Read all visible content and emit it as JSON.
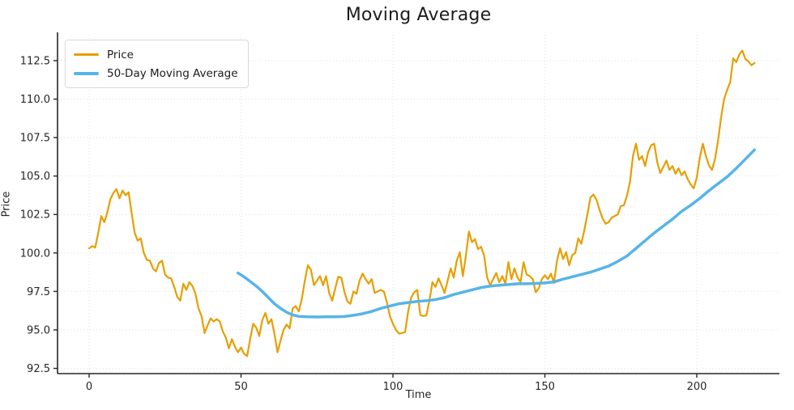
{
  "title": "Moving Average",
  "legend": {
    "items": [
      {
        "label": "Price",
        "color": "#E69F00",
        "thickness": 2.5
      },
      {
        "label": "50-Day Moving Average",
        "color": "#56B4E9",
        "thickness": 4
      }
    ]
  },
  "chart_data": {
    "type": "line",
    "title": "Moving Average",
    "xlabel": "Time",
    "ylabel": "Price",
    "grid": true,
    "legend_position": "upper left",
    "xlim": [
      -10.4,
      227.2
    ],
    "ylim": [
      92.16,
      114.18
    ],
    "x_ticks": [
      0,
      50,
      100,
      150,
      200
    ],
    "x_tick_labels": [
      "0",
      "50",
      "100",
      "150",
      "200"
    ],
    "y_ticks": [
      92.5,
      95.0,
      97.5,
      100.0,
      102.5,
      105.0,
      107.5,
      110.0,
      112.5
    ],
    "y_tick_labels": [
      "92.5",
      "95.0",
      "97.5",
      "100.0",
      "102.5",
      "105.0",
      "107.5",
      "110.0",
      "112.5"
    ],
    "series": [
      {
        "name": "Price",
        "color": "#E69F00",
        "line_width": 2.2,
        "x_start": 0,
        "x_step": 1,
        "values": [
          100.3,
          100.45,
          100.35,
          101.3,
          102.4,
          102.0,
          102.65,
          103.5,
          103.9,
          104.15,
          103.55,
          104.05,
          103.75,
          103.95,
          102.6,
          101.3,
          100.8,
          100.95,
          100.0,
          99.55,
          99.5,
          99.0,
          98.8,
          99.35,
          99.5,
          98.6,
          98.4,
          98.35,
          97.8,
          97.15,
          96.9,
          98.0,
          97.6,
          98.1,
          97.85,
          97.35,
          96.4,
          95.9,
          94.8,
          95.3,
          95.75,
          95.55,
          95.7,
          95.55,
          94.9,
          94.5,
          93.8,
          94.4,
          93.9,
          93.55,
          93.85,
          93.45,
          93.3,
          94.4,
          95.4,
          95.15,
          94.6,
          95.65,
          96.1,
          95.4,
          95.7,
          94.75,
          93.55,
          94.3,
          95.0,
          95.35,
          95.1,
          96.4,
          96.55,
          96.2,
          97.0,
          98.2,
          99.2,
          98.9,
          97.9,
          98.2,
          98.5,
          97.9,
          98.5,
          97.4,
          96.9,
          97.7,
          98.45,
          98.4,
          97.5,
          96.85,
          96.7,
          97.5,
          97.35,
          98.2,
          98.66,
          98.3,
          98.0,
          98.3,
          97.4,
          97.5,
          97.6,
          97.5,
          96.8,
          95.9,
          95.4,
          95.0,
          94.76,
          94.8,
          94.85,
          96.2,
          97.1,
          97.45,
          97.6,
          95.97,
          95.9,
          95.95,
          96.9,
          98.1,
          97.8,
          98.35,
          97.9,
          97.4,
          98.2,
          99.0,
          98.4,
          99.5,
          100.05,
          98.5,
          99.8,
          101.4,
          100.7,
          100.9,
          100.25,
          100.4,
          99.85,
          98.4,
          97.9,
          98.3,
          98.7,
          98.1,
          98.5,
          98.0,
          99.4,
          98.3,
          99.0,
          98.4,
          98.1,
          99.4,
          98.6,
          98.5,
          98.3,
          97.45,
          97.7,
          98.3,
          98.55,
          98.3,
          98.66,
          98.05,
          99.5,
          100.3,
          99.6,
          100.05,
          99.2,
          99.85,
          100.0,
          100.95,
          100.6,
          101.5,
          102.5,
          103.6,
          103.8,
          103.45,
          102.8,
          102.25,
          101.9,
          102.0,
          102.3,
          102.4,
          102.5,
          103.05,
          103.1,
          103.7,
          104.6,
          106.3,
          107.1,
          106.05,
          106.3,
          105.65,
          106.55,
          107.0,
          107.1,
          105.9,
          105.2,
          105.6,
          106.0,
          105.4,
          105.65,
          105.15,
          105.5,
          105.05,
          105.3,
          104.8,
          104.45,
          104.2,
          104.9,
          106.2,
          107.1,
          106.3,
          105.7,
          105.4,
          106.1,
          107.3,
          108.8,
          110.0,
          110.6,
          111.1,
          112.65,
          112.4,
          112.9,
          113.15,
          112.6,
          112.45,
          112.2,
          112.35
        ]
      },
      {
        "name": "50-Day Moving Average",
        "color": "#56B4E9",
        "line_width": 3.5,
        "points": [
          [
            49,
            98.7
          ],
          [
            51,
            98.45
          ],
          [
            53,
            98.15
          ],
          [
            55,
            97.85
          ],
          [
            57,
            97.5
          ],
          [
            59,
            97.1
          ],
          [
            61,
            96.7
          ],
          [
            63,
            96.4
          ],
          [
            65,
            96.15
          ],
          [
            67,
            95.97
          ],
          [
            69,
            95.88
          ],
          [
            72,
            95.85
          ],
          [
            75,
            95.84
          ],
          [
            78,
            95.85
          ],
          [
            81,
            95.85
          ],
          [
            84,
            95.87
          ],
          [
            87,
            95.95
          ],
          [
            90,
            96.05
          ],
          [
            93,
            96.2
          ],
          [
            96,
            96.4
          ],
          [
            99,
            96.55
          ],
          [
            102,
            96.7
          ],
          [
            105,
            96.78
          ],
          [
            108,
            96.85
          ],
          [
            111,
            96.9
          ],
          [
            114,
            96.97
          ],
          [
            117,
            97.1
          ],
          [
            120,
            97.3
          ],
          [
            123,
            97.45
          ],
          [
            126,
            97.6
          ],
          [
            129,
            97.75
          ],
          [
            132,
            97.85
          ],
          [
            135,
            97.9
          ],
          [
            138,
            97.95
          ],
          [
            141,
            98.0
          ],
          [
            144,
            98.0
          ],
          [
            147,
            98.02
          ],
          [
            150,
            98.05
          ],
          [
            153,
            98.12
          ],
          [
            156,
            98.3
          ],
          [
            159,
            98.45
          ],
          [
            162,
            98.6
          ],
          [
            165,
            98.75
          ],
          [
            168,
            98.95
          ],
          [
            171,
            99.15
          ],
          [
            174,
            99.45
          ],
          [
            177,
            99.8
          ],
          [
            180,
            100.3
          ],
          [
            183,
            100.8
          ],
          [
            186,
            101.3
          ],
          [
            189,
            101.75
          ],
          [
            192,
            102.2
          ],
          [
            195,
            102.7
          ],
          [
            198,
            103.1
          ],
          [
            201,
            103.55
          ],
          [
            204,
            104.05
          ],
          [
            207,
            104.5
          ],
          [
            210,
            104.95
          ],
          [
            213,
            105.5
          ],
          [
            215,
            105.9
          ],
          [
            217,
            106.3
          ],
          [
            219,
            106.7
          ]
        ]
      }
    ]
  }
}
